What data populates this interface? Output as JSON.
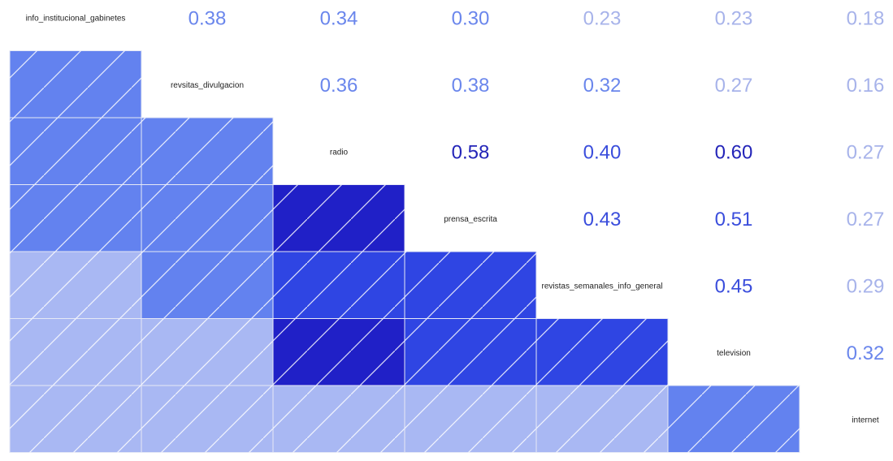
{
  "chart_data": {
    "type": "heatmap",
    "variables": [
      "info_institucional_gabinetes",
      "revsitas_divulgacion",
      "radio",
      "prensa_escrita",
      "revistas_semanales_info_general",
      "television",
      "internet"
    ],
    "matrix": [
      [
        1.0,
        0.38,
        0.34,
        0.3,
        0.23,
        0.23,
        0.18
      ],
      [
        0.38,
        1.0,
        0.36,
        0.38,
        0.32,
        0.27,
        0.16
      ],
      [
        0.34,
        0.36,
        1.0,
        0.58,
        0.4,
        0.6,
        0.27
      ],
      [
        0.3,
        0.38,
        0.58,
        1.0,
        0.43,
        0.51,
        0.27
      ],
      [
        0.23,
        0.32,
        0.4,
        0.43,
        1.0,
        0.45,
        0.29
      ],
      [
        0.23,
        0.27,
        0.6,
        0.51,
        0.45,
        1.0,
        0.32
      ],
      [
        0.18,
        0.16,
        0.27,
        0.27,
        0.29,
        0.32,
        1.0
      ]
    ],
    "upper_display": "numbers",
    "lower_display": "shaded-hatched-tiles",
    "diagonal_display": "variable-labels",
    "colors": {
      "low": "#a9b8f3",
      "mid_low": "#6382ef",
      "mid": "#2f45e3",
      "high": "#2020c7",
      "text_low": "#a7b3ea",
      "text_mid_low": "#6a86ec",
      "text_mid": "#3a4ddc",
      "text_high": "#2324b8"
    }
  }
}
